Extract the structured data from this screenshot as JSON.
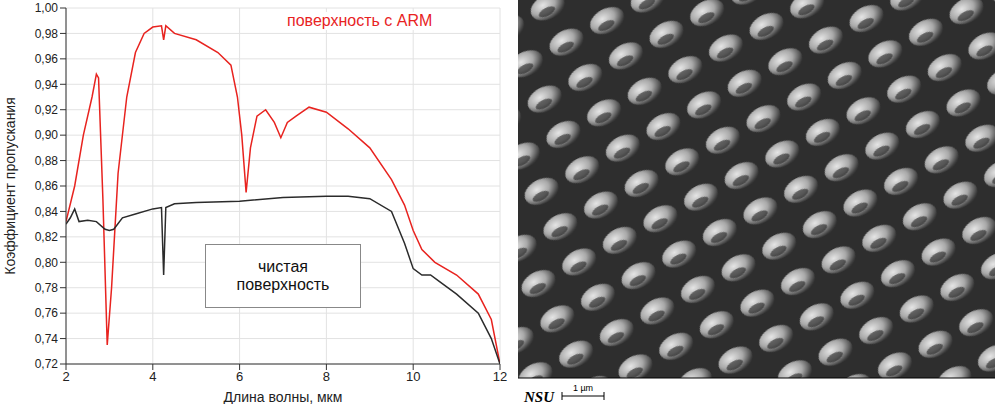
{
  "chart_data": {
    "type": "line",
    "xlabel": "Длина волны, мкм",
    "ylabel": "Коэффициент пропускания",
    "xlim": [
      2,
      12
    ],
    "xticks": [
      2,
      4,
      6,
      8,
      10,
      12
    ],
    "ylim": [
      0.72,
      1.0
    ],
    "yticks": [
      {
        "value": 0.72,
        "label": "0,72"
      },
      {
        "value": 0.74,
        "label": "0,74"
      },
      {
        "value": 0.76,
        "label": "0,76"
      },
      {
        "value": 0.78,
        "label": "0,78"
      },
      {
        "value": 0.8,
        "label": "0,80"
      },
      {
        "value": 0.82,
        "label": "0,82"
      },
      {
        "value": 0.84,
        "label": "0,84"
      },
      {
        "value": 0.86,
        "label": "0,86"
      },
      {
        "value": 0.88,
        "label": "0,88"
      },
      {
        "value": 0.9,
        "label": "0,90"
      },
      {
        "value": 0.92,
        "label": "0,92"
      },
      {
        "value": 0.94,
        "label": "0,94"
      },
      {
        "value": 0.96,
        "label": "0,96"
      },
      {
        "value": 0.98,
        "label": "0,98"
      },
      {
        "value": 1.0,
        "label": "1,00"
      }
    ],
    "grid": true,
    "series": [
      {
        "name": "поверхность с ARM",
        "color": "#e8231f",
        "x": [
          2.0,
          2.2,
          2.4,
          2.6,
          2.7,
          2.75,
          2.85,
          2.95,
          3.05,
          3.2,
          3.4,
          3.6,
          3.8,
          4.0,
          4.2,
          4.25,
          4.3,
          4.5,
          5.0,
          5.5,
          5.8,
          5.95,
          6.05,
          6.15,
          6.25,
          6.4,
          6.6,
          6.8,
          6.95,
          7.1,
          7.3,
          7.6,
          8.0,
          8.5,
          9.0,
          9.5,
          9.8,
          10.0,
          10.2,
          10.5,
          11.0,
          11.5,
          11.8,
          12.0
        ],
        "values": [
          0.832,
          0.86,
          0.9,
          0.93,
          0.948,
          0.945,
          0.85,
          0.735,
          0.78,
          0.87,
          0.93,
          0.965,
          0.98,
          0.985,
          0.986,
          0.975,
          0.986,
          0.98,
          0.975,
          0.965,
          0.955,
          0.93,
          0.9,
          0.855,
          0.89,
          0.915,
          0.92,
          0.91,
          0.898,
          0.91,
          0.915,
          0.922,
          0.918,
          0.905,
          0.89,
          0.865,
          0.845,
          0.825,
          0.81,
          0.8,
          0.79,
          0.775,
          0.755,
          0.72
        ]
      },
      {
        "name": "чистая поверхность",
        "color": "#2b2b2b",
        "x": [
          2.0,
          2.1,
          2.2,
          2.3,
          2.5,
          2.7,
          2.9,
          3.0,
          3.1,
          3.3,
          3.6,
          4.0,
          4.2,
          4.25,
          4.3,
          4.5,
          5.0,
          6.0,
          7.0,
          8.0,
          8.5,
          9.0,
          9.5,
          9.8,
          10.0,
          10.2,
          10.4,
          10.6,
          11.0,
          11.5,
          11.8,
          12.0
        ],
        "values": [
          0.83,
          0.835,
          0.842,
          0.832,
          0.833,
          0.832,
          0.826,
          0.825,
          0.826,
          0.835,
          0.838,
          0.842,
          0.843,
          0.79,
          0.843,
          0.846,
          0.847,
          0.848,
          0.851,
          0.852,
          0.852,
          0.85,
          0.84,
          0.815,
          0.795,
          0.79,
          0.79,
          0.785,
          0.775,
          0.76,
          0.74,
          0.72
        ]
      }
    ]
  },
  "image": {
    "label": "NSU",
    "scale_bar": "1 µm"
  }
}
